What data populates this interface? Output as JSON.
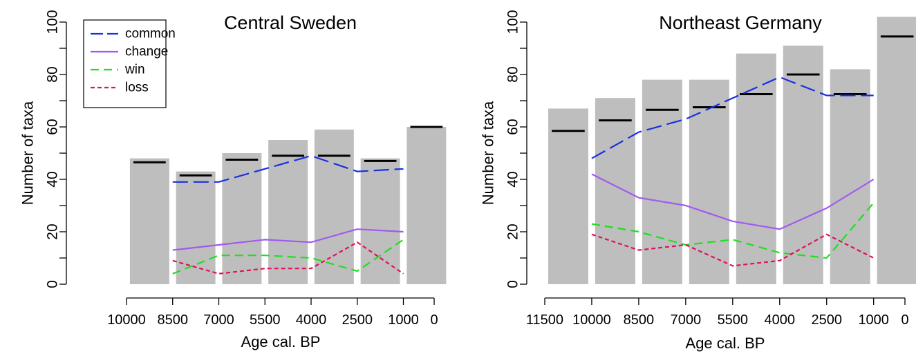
{
  "chart_data": [
    {
      "type": "bar",
      "title": "Central Sweden",
      "xlabel": "Age cal. BP",
      "ylabel": "Number of taxa",
      "x_ticks": [
        "10000",
        "8500",
        "7000",
        "5500",
        "4000",
        "2500",
        "1000",
        "0"
      ],
      "y_ticks": [
        "0",
        "20",
        "40",
        "60",
        "80",
        "100"
      ],
      "xlim": [
        10000,
        0
      ],
      "ylim": [
        0,
        100
      ],
      "bars": {
        "centers": [
          9250,
          7750,
          6250,
          4750,
          3250,
          1750,
          250
        ],
        "values": [
          48,
          43,
          50,
          55,
          59,
          48,
          60
        ],
        "markers": [
          46.5,
          41.5,
          47.5,
          49,
          49,
          47,
          60
        ]
      },
      "legend": {
        "placement": "top-left",
        "entries": [
          "common",
          "change",
          "win",
          "loss"
        ]
      },
      "series": [
        {
          "name": "common",
          "x": [
            8500,
            7000,
            5500,
            4000,
            2500,
            1000
          ],
          "values": [
            39,
            39,
            44,
            49,
            43,
            44
          ],
          "color": "#1a2fe0",
          "dash": "long"
        },
        {
          "name": "change",
          "x": [
            8500,
            7000,
            5500,
            4000,
            2500,
            1000
          ],
          "values": [
            13,
            15,
            17,
            16,
            21,
            20
          ],
          "color": "#a259f0",
          "dash": "solid"
        },
        {
          "name": "win",
          "x": [
            8500,
            7000,
            5500,
            4000,
            2500,
            1000
          ],
          "values": [
            4,
            11,
            11,
            10,
            5,
            17
          ],
          "color": "#1ee01e",
          "dash": "medium"
        },
        {
          "name": "loss",
          "x": [
            8500,
            7000,
            5500,
            4000,
            2500,
            1000
          ],
          "values": [
            9,
            4,
            6,
            6,
            16,
            4
          ],
          "color": "#e0105a",
          "dash": "short"
        }
      ]
    },
    {
      "type": "bar",
      "title": "Northeast Germany",
      "xlabel": "Age cal. BP",
      "ylabel": "Number of taxa",
      "x_ticks": [
        "11500",
        "10000",
        "8500",
        "7000",
        "5500",
        "4000",
        "2500",
        "1000",
        "0"
      ],
      "y_ticks": [
        "0",
        "20",
        "40",
        "60",
        "80",
        "100"
      ],
      "xlim": [
        11500,
        0
      ],
      "ylim": [
        0,
        100
      ],
      "bars": {
        "centers": [
          10750,
          9250,
          7750,
          6250,
          4750,
          3250,
          1750,
          250
        ],
        "values": [
          67,
          71,
          78,
          78,
          88,
          91,
          82,
          102
        ],
        "markers": [
          58.5,
          62.5,
          66.5,
          67.5,
          72.5,
          80,
          72.5,
          94.5
        ]
      },
      "series": [
        {
          "name": "common",
          "x": [
            10000,
            8500,
            7000,
            5500,
            4000,
            2500,
            1000
          ],
          "values": [
            48,
            58,
            63,
            71,
            79,
            72,
            72
          ],
          "color": "#1a2fe0",
          "dash": "long"
        },
        {
          "name": "change",
          "x": [
            10000,
            8500,
            7000,
            5500,
            4000,
            2500,
            1000
          ],
          "values": [
            42,
            33,
            30,
            24,
            21,
            29,
            40
          ],
          "color": "#a259f0",
          "dash": "solid"
        },
        {
          "name": "win",
          "x": [
            10000,
            8500,
            7000,
            5500,
            4000,
            2500,
            1000
          ],
          "values": [
            23,
            20,
            15,
            17,
            12,
            10,
            31
          ],
          "color": "#1ee01e",
          "dash": "medium"
        },
        {
          "name": "loss",
          "x": [
            10000,
            8500,
            7000,
            5500,
            4000,
            2500,
            1000
          ],
          "values": [
            19,
            13,
            15,
            7,
            9,
            19,
            10
          ],
          "color": "#e0105a",
          "dash": "short"
        }
      ]
    }
  ]
}
